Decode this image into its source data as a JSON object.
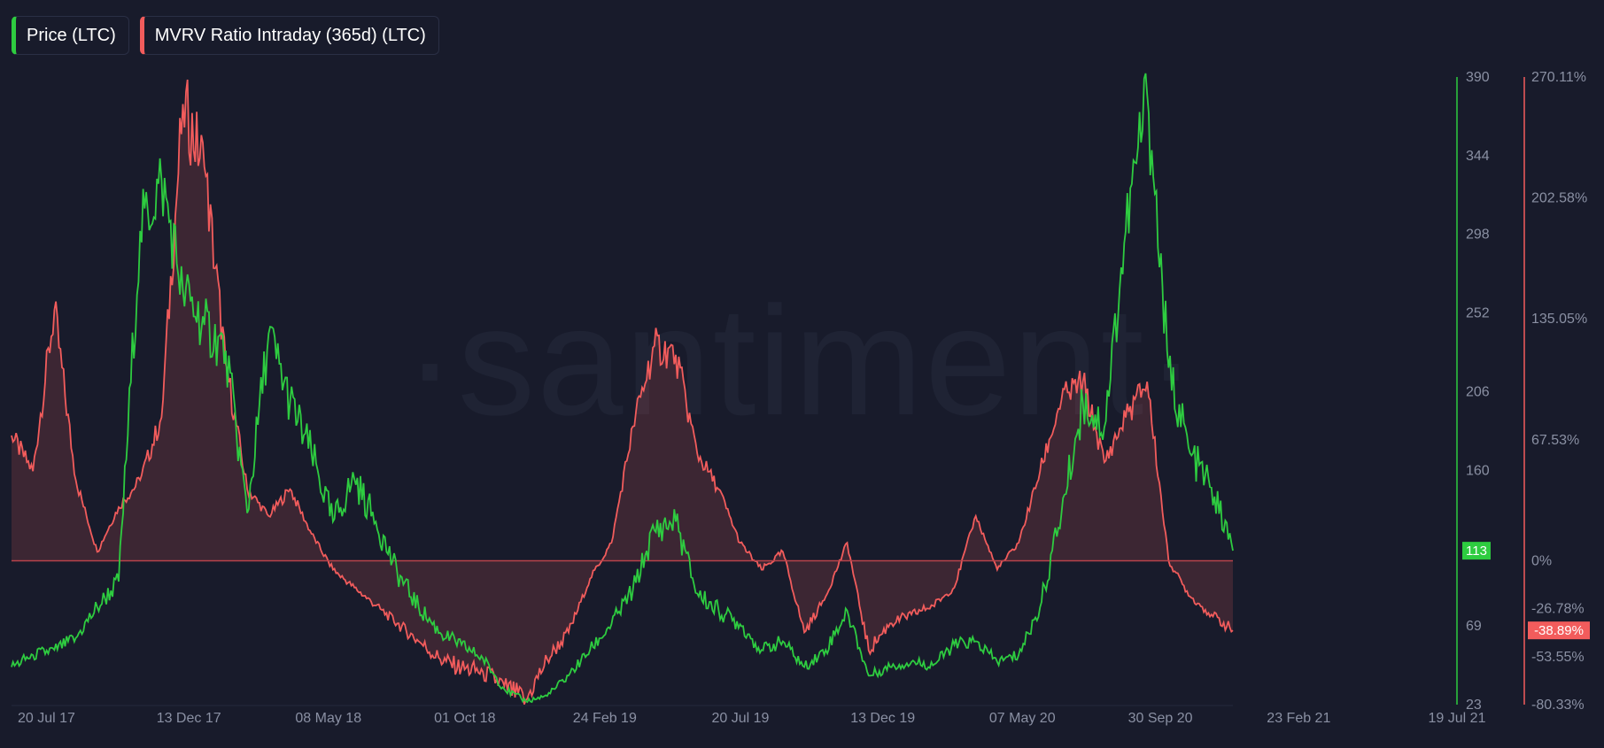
{
  "legend": [
    {
      "label": "Price (LTC)",
      "color": "#2ecc40"
    },
    {
      "label": "MVRV Ratio Intraday (365d) (LTC)",
      "color": "#f25c5c"
    }
  ],
  "watermark": "·santiment·",
  "chart_data": {
    "type": "line",
    "x_ticks": [
      "20 Jul 17",
      "13 Dec 17",
      "08 May 18",
      "01 Oct 18",
      "24 Feb 19",
      "20 Jul 19",
      "13 Dec 19",
      "07 May 20",
      "30 Sep 20",
      "23 Feb 21",
      "19 Jul 21"
    ],
    "y_left": {
      "ticks": [
        "390",
        "344",
        "298",
        "252",
        "206",
        "160",
        "113",
        "69",
        "23"
      ],
      "range": [
        23,
        390
      ]
    },
    "y_right": {
      "ticks": [
        "270.11%",
        "202.58%",
        "135.05%",
        "67.53%",
        "0%",
        "-26.78%",
        "-53.55%",
        "-80.33%"
      ],
      "range": [
        -80.33,
        270.11
      ]
    },
    "price_badge": "113",
    "mvrv_badge": "-38.89%",
    "series": [
      {
        "name": "Price (LTC)",
        "axis": "left",
        "color": "#2ecc40",
        "points": [
          [
            "20 Jul 17",
            45
          ],
          [
            "Sep 17",
            52
          ],
          [
            "Oct 17",
            55
          ],
          [
            "Nov 17",
            62
          ],
          [
            "Nov 17",
            80
          ],
          [
            "13 Dec 17",
            95
          ],
          [
            "Dec 17",
            300
          ],
          [
            "Dec 17",
            330
          ],
          [
            "Jan 18",
            265
          ],
          [
            "Jan 18",
            245
          ],
          [
            "Feb 18",
            230
          ],
          [
            "Feb 18",
            135
          ],
          [
            "Mar 18",
            240
          ],
          [
            "Mar 18",
            200
          ],
          [
            "Apr 18",
            170
          ],
          [
            "08 May 18",
            130
          ],
          [
            "May 18",
            155
          ],
          [
            "Jun 18",
            130
          ],
          [
            "Jul 18",
            100
          ],
          [
            "Aug 18",
            80
          ],
          [
            "Sep 18",
            65
          ],
          [
            "01 Oct 18",
            58
          ],
          [
            "Nov 18",
            50
          ],
          [
            "Dec 18",
            32
          ],
          [
            "Dec 18",
            25
          ],
          [
            "Jan 19",
            28
          ],
          [
            "24 Feb 19",
            40
          ],
          [
            "Mar 19",
            55
          ],
          [
            "Apr 19",
            70
          ],
          [
            "May 19",
            90
          ],
          [
            "Jun 19",
            125
          ],
          [
            "Jun 19",
            130
          ],
          [
            "20 Jul 19",
            88
          ],
          [
            "Aug 19",
            78
          ],
          [
            "Sep 19",
            70
          ],
          [
            "Oct 19",
            55
          ],
          [
            "Nov 19",
            60
          ],
          [
            "13 Dec 19",
            45
          ],
          [
            "Jan 20",
            55
          ],
          [
            "Feb 20",
            78
          ],
          [
            "Mar 20",
            40
          ],
          [
            "Apr 20",
            45
          ],
          [
            "07 May 20",
            48
          ],
          [
            "Jun 20",
            46
          ],
          [
            "Aug 20",
            58
          ],
          [
            "Aug 20",
            60
          ],
          [
            "30 Sep 20",
            48
          ],
          [
            "Oct 20",
            52
          ],
          [
            "Nov 20",
            80
          ],
          [
            "Dec 20",
            135
          ],
          [
            "23 Feb 21",
            200
          ],
          [
            "Mar 21",
            185
          ],
          [
            "Apr 21",
            300
          ],
          [
            "May 21",
            380
          ],
          [
            "May 21",
            220
          ],
          [
            "Jun 21",
            170
          ],
          [
            "Jun 21",
            150
          ],
          [
            "19 Jul 21",
            113
          ]
        ]
      },
      {
        "name": "MVRV Ratio Intraday (365d) (LTC)",
        "axis": "right",
        "color": "#f25c5c",
        "points": [
          [
            "20 Jul 17",
            70
          ],
          [
            "Aug 17",
            50
          ],
          [
            "Aug 17",
            140
          ],
          [
            "Sep 17",
            45
          ],
          [
            "Sep 17",
            5
          ],
          [
            "Oct 17",
            30
          ],
          [
            "Nov 17",
            45
          ],
          [
            "Nov 17",
            80
          ],
          [
            "13 Dec 17",
            255
          ],
          [
            "Dec 17",
            220
          ],
          [
            "Jan 18",
            110
          ],
          [
            "Feb 18",
            40
          ],
          [
            "Feb 18",
            25
          ],
          [
            "Mar 18",
            40
          ],
          [
            "Apr 18",
            15
          ],
          [
            "08 May 18",
            -5
          ],
          [
            "May 18",
            -15
          ],
          [
            "Jun 18",
            -25
          ],
          [
            "Jul 18",
            -35
          ],
          [
            "Aug 18",
            -45
          ],
          [
            "Sep 18",
            -55
          ],
          [
            "01 Oct 18",
            -60
          ],
          [
            "Nov 18",
            -62
          ],
          [
            "Dec 18",
            -70
          ],
          [
            "Dec 18",
            -78
          ],
          [
            "Jan 19",
            -55
          ],
          [
            "24 Feb 19",
            -40
          ],
          [
            "Mar 19",
            -10
          ],
          [
            "Apr 19",
            10
          ],
          [
            "May 19",
            75
          ],
          [
            "Jun 19",
            120
          ],
          [
            "Jun 19",
            115
          ],
          [
            "20 Jul 19",
            60
          ],
          [
            "Aug 19",
            40
          ],
          [
            "Sep 19",
            10
          ],
          [
            "Oct 19",
            -5
          ],
          [
            "Nov 19",
            5
          ],
          [
            "13 Dec 19",
            -40
          ],
          [
            "Jan 20",
            -20
          ],
          [
            "Feb 20",
            10
          ],
          [
            "Mar 20",
            -50
          ],
          [
            "Apr 20",
            -35
          ],
          [
            "07 May 20",
            -30
          ],
          [
            "Jun 20",
            -25
          ],
          [
            "Aug 20",
            -15
          ],
          [
            "Aug 20",
            25
          ],
          [
            "30 Sep 20",
            -5
          ],
          [
            "Oct 20",
            10
          ],
          [
            "Nov 20",
            50
          ],
          [
            "Dec 20",
            90
          ],
          [
            "23 Feb 21",
            100
          ],
          [
            "Mar 21",
            55
          ],
          [
            "Apr 21",
            80
          ],
          [
            "May 21",
            100
          ],
          [
            "May 21",
            0
          ],
          [
            "Jun 21",
            -20
          ],
          [
            "Jun 21",
            -30
          ],
          [
            "19 Jul 21",
            -38.89
          ]
        ]
      }
    ]
  }
}
